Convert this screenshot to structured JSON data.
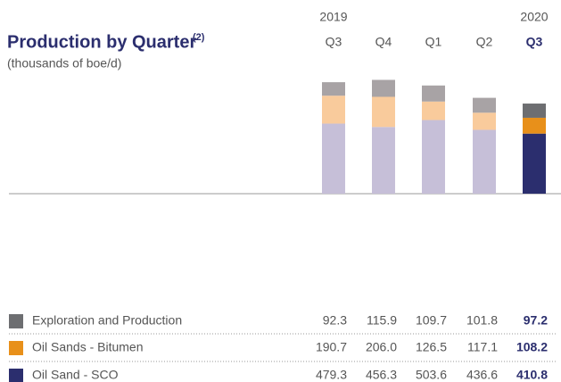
{
  "chart_data": {
    "type": "stacked_bar",
    "title": "Production by Quarter",
    "title_note": "(2)",
    "subtitle": "(thousands of boe/d)",
    "categories": [
      "Q3",
      "Q4",
      "Q1",
      "Q2",
      "Q3"
    ],
    "years": [
      "2019",
      null,
      null,
      null,
      "2020"
    ],
    "highlight_index": 4,
    "ylim": [
      0,
      1300
    ],
    "series": [
      {
        "name": "Oil Sand - SCO",
        "color": "#c6bfd8",
        "highlight_color": "#2b2e6e",
        "values": [
          479.3,
          456.3,
          503.6,
          436.6,
          410.8
        ],
        "value_labels": [
          "479.3",
          "456.3",
          "503.6",
          "436.6",
          "410.8"
        ]
      },
      {
        "name": "Oil Sands - Bitumen",
        "color": "#f9cb9c",
        "highlight_color": "#e8901a",
        "values": [
          190.7,
          206.0,
          126.5,
          117.1,
          108.2
        ],
        "value_labels": [
          "190.7",
          "206.0",
          "126.5",
          "117.1",
          "108.2"
        ]
      },
      {
        "name": "Exploration and Production",
        "color": "#a8a3a5",
        "highlight_color": "#6d6e71",
        "values": [
          92.3,
          115.9,
          109.7,
          101.8,
          97.2
        ],
        "value_labels": [
          "92.3",
          "115.9",
          "109.7",
          "101.8",
          "97.2"
        ]
      }
    ]
  }
}
